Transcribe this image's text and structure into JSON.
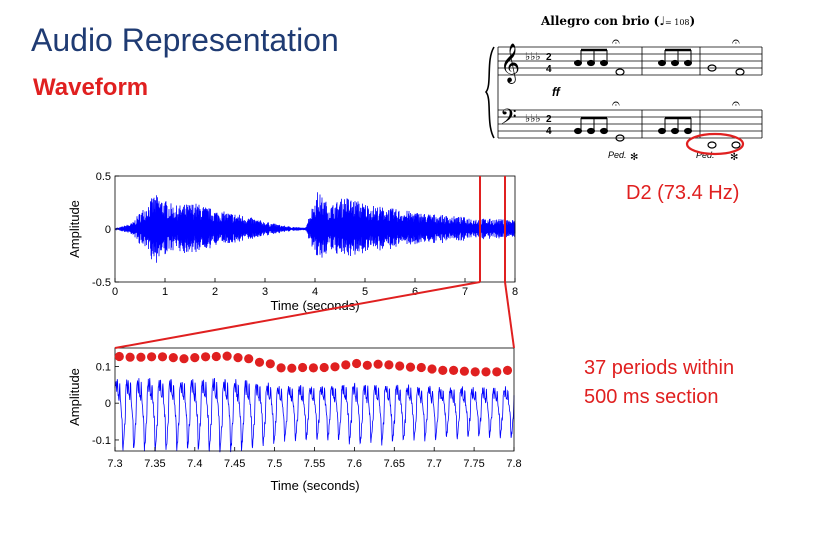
{
  "slide": {
    "title": "Audio Representation",
    "subtitle": "Waveform",
    "note_label": "D2 (73.4 Hz)",
    "periods_line1": "37 periods within",
    "periods_line2": "500 ms section"
  },
  "score": {
    "tempo": "Allegro con brio",
    "metronome": "= 108",
    "dynamic": "ff",
    "pedal": [
      "Ped.",
      "Ped."
    ]
  },
  "colors": {
    "title": "#1f3b73",
    "accent": "#e02020",
    "waveform": "#0000ff"
  },
  "chart_data": [
    {
      "type": "line",
      "title": "",
      "xlabel": "Time (seconds)",
      "ylabel": "Amplitude",
      "xlim": [
        0,
        8
      ],
      "ylim": [
        -0.5,
        0.5
      ],
      "xticks": [
        "0",
        "1",
        "2",
        "3",
        "4",
        "5",
        "6",
        "7",
        "8"
      ],
      "yticks": [
        "0.5",
        "0",
        "-0.5"
      ],
      "envelope": [
        [
          0,
          0
        ],
        [
          0.35,
          0.06
        ],
        [
          0.5,
          0.16
        ],
        [
          0.8,
          0.33
        ],
        [
          1.2,
          0.22
        ],
        [
          1.6,
          0.25
        ],
        [
          2.0,
          0.18
        ],
        [
          2.5,
          0.14
        ],
        [
          3.0,
          0.07
        ],
        [
          3.4,
          0.03
        ],
        [
          3.8,
          0.01
        ],
        [
          4.05,
          0.36
        ],
        [
          4.3,
          0.22
        ],
        [
          4.6,
          0.31
        ],
        [
          5.1,
          0.23
        ],
        [
          5.6,
          0.19
        ],
        [
          6.2,
          0.15
        ],
        [
          6.8,
          0.12
        ],
        [
          7.3,
          0.1
        ],
        [
          8,
          0.09
        ]
      ],
      "highlight_section": [
        7.3,
        7.8
      ]
    },
    {
      "type": "line",
      "title": "",
      "xlabel": "Time (seconds)",
      "ylabel": "Amplitude",
      "xlim": [
        7.3,
        7.8
      ],
      "ylim": [
        -0.13,
        0.15
      ],
      "xticks": [
        "7.3",
        "7.35",
        "7.4",
        "7.45",
        "7.5",
        "7.55",
        "7.6",
        "7.65",
        "7.7",
        "7.75",
        "7.8"
      ],
      "yticks": [
        "0.1",
        "0",
        "-0.1"
      ],
      "periods": 37,
      "peak_times": [
        7.3054,
        7.3189,
        7.3324,
        7.3459,
        7.3595,
        7.373,
        7.3865,
        7.4,
        7.4135,
        7.427,
        7.4405,
        7.4541,
        7.4676,
        7.4811,
        7.4946,
        7.5081,
        7.5216,
        7.5351,
        7.5486,
        7.5622,
        7.5757,
        7.5892,
        7.6027,
        7.6162,
        7.6297,
        7.6432,
        7.6568,
        7.6703,
        7.6838,
        7.6973,
        7.7108,
        7.7243,
        7.7378,
        7.7514,
        7.7649,
        7.7784,
        7.7919
      ],
      "peak_values": [
        0.127,
        0.125,
        0.125,
        0.126,
        0.126,
        0.124,
        0.121,
        0.124,
        0.126,
        0.127,
        0.128,
        0.124,
        0.121,
        0.111,
        0.107,
        0.096,
        0.095,
        0.097,
        0.096,
        0.097,
        0.099,
        0.104,
        0.108,
        0.103,
        0.106,
        0.104,
        0.101,
        0.098,
        0.097,
        0.093,
        0.089,
        0.089,
        0.087,
        0.085,
        0.085,
        0.085,
        0.089
      ]
    }
  ]
}
